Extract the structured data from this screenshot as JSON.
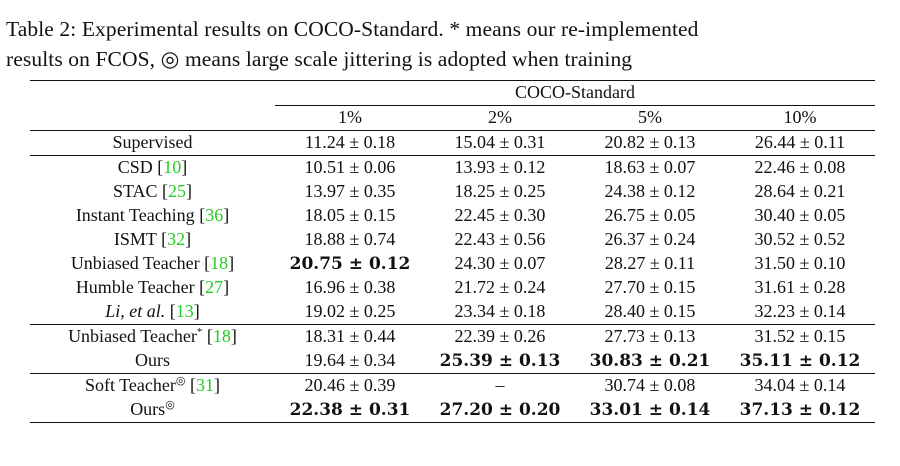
{
  "caption": {
    "line1": "Table 2: Experimental results on COCO-Standard. * means our re-implemented",
    "line2": "results on FCOS, ◎ means large scale jittering is adopted when training"
  },
  "table": {
    "group_header": "COCO-Standard",
    "columns": [
      "1%",
      "2%",
      "5%",
      "10%"
    ],
    "sections": [
      {
        "rows": [
          {
            "method": "Supervised",
            "ref": "",
            "sup": "",
            "italic": false,
            "cells": [
              {
                "v": "11.24 ± 0.18",
                "b": false
              },
              {
                "v": "15.04 ± 0.31",
                "b": false
              },
              {
                "v": "20.82 ± 0.13",
                "b": false
              },
              {
                "v": "26.44 ± 0.11",
                "b": false
              }
            ]
          }
        ]
      },
      {
        "rows": [
          {
            "method": "CSD",
            "ref": "10",
            "sup": "",
            "italic": false,
            "cells": [
              {
                "v": "10.51 ± 0.06",
                "b": false
              },
              {
                "v": "13.93 ± 0.12",
                "b": false
              },
              {
                "v": "18.63 ± 0.07",
                "b": false
              },
              {
                "v": "22.46 ± 0.08",
                "b": false
              }
            ]
          },
          {
            "method": "STAC",
            "ref": "25",
            "sup": "",
            "italic": false,
            "cells": [
              {
                "v": "13.97 ± 0.35",
                "b": false
              },
              {
                "v": "18.25 ± 0.25",
                "b": false
              },
              {
                "v": "24.38 ± 0.12",
                "b": false
              },
              {
                "v": "28.64 ± 0.21",
                "b": false
              }
            ]
          },
          {
            "method": "Instant Teaching",
            "ref": "36",
            "sup": "",
            "italic": false,
            "cells": [
              {
                "v": "18.05 ± 0.15",
                "b": false
              },
              {
                "v": "22.45 ± 0.30",
                "b": false
              },
              {
                "v": "26.75 ± 0.05",
                "b": false
              },
              {
                "v": "30.40 ± 0.05",
                "b": false
              }
            ]
          },
          {
            "method": "ISMT",
            "ref": "32",
            "sup": "",
            "italic": false,
            "cells": [
              {
                "v": "18.88 ± 0.74",
                "b": false
              },
              {
                "v": "22.43 ± 0.56",
                "b": false
              },
              {
                "v": "26.37 ± 0.24",
                "b": false
              },
              {
                "v": "30.52 ± 0.52",
                "b": false
              }
            ]
          },
          {
            "method": "Unbiased Teacher",
            "ref": "18",
            "sup": "",
            "italic": false,
            "cells": [
              {
                "v": "20.75 ± 0.12",
                "b": true
              },
              {
                "v": "24.30 ± 0.07",
                "b": false
              },
              {
                "v": "28.27 ± 0.11",
                "b": false
              },
              {
                "v": "31.50 ± 0.10",
                "b": false
              }
            ]
          },
          {
            "method": "Humble Teacher",
            "ref": "27",
            "sup": "",
            "italic": false,
            "cells": [
              {
                "v": "16.96 ± 0.38",
                "b": false
              },
              {
                "v": "21.72 ± 0.24",
                "b": false
              },
              {
                "v": "27.70 ± 0.15",
                "b": false
              },
              {
                "v": "31.61 ± 0.28",
                "b": false
              }
            ]
          },
          {
            "method": "Li, et al.",
            "ref": "13",
            "sup": "",
            "italic": true,
            "cells": [
              {
                "v": "19.02 ± 0.25",
                "b": false
              },
              {
                "v": "23.34 ± 0.18",
                "b": false
              },
              {
                "v": "28.40 ± 0.15",
                "b": false
              },
              {
                "v": "32.23 ± 0.14",
                "b": false
              }
            ]
          }
        ]
      },
      {
        "rows": [
          {
            "method": "Unbiased Teacher",
            "ref": "18",
            "sup": "*",
            "italic": false,
            "cells": [
              {
                "v": "18.31 ± 0.44",
                "b": false
              },
              {
                "v": "22.39 ± 0.26",
                "b": false
              },
              {
                "v": "27.73 ± 0.13",
                "b": false
              },
              {
                "v": "31.52 ± 0.15",
                "b": false
              }
            ]
          },
          {
            "method": "Ours",
            "ref": "",
            "sup": "",
            "italic": false,
            "cells": [
              {
                "v": "19.64 ± 0.34",
                "b": false
              },
              {
                "v": "25.39 ± 0.13",
                "b": true
              },
              {
                "v": "30.83 ± 0.21",
                "b": true
              },
              {
                "v": "35.11 ± 0.12",
                "b": true
              }
            ]
          }
        ]
      },
      {
        "rows": [
          {
            "method": "Soft Teacher",
            "ref": "31",
            "sup": "◎",
            "italic": false,
            "cells": [
              {
                "v": "20.46 ± 0.39",
                "b": false
              },
              {
                "v": "–",
                "b": false
              },
              {
                "v": "30.74 ± 0.08",
                "b": false
              },
              {
                "v": "34.04 ± 0.14",
                "b": false
              }
            ]
          },
          {
            "method": "Ours",
            "ref": "",
            "sup": "◎",
            "italic": false,
            "cells": [
              {
                "v": "22.38 ± 0.31",
                "b": true
              },
              {
                "v": "27.20 ± 0.20",
                "b": true
              },
              {
                "v": "33.01 ± 0.14",
                "b": true
              },
              {
                "v": "37.13 ± 0.12",
                "b": true
              }
            ]
          }
        ]
      }
    ]
  }
}
